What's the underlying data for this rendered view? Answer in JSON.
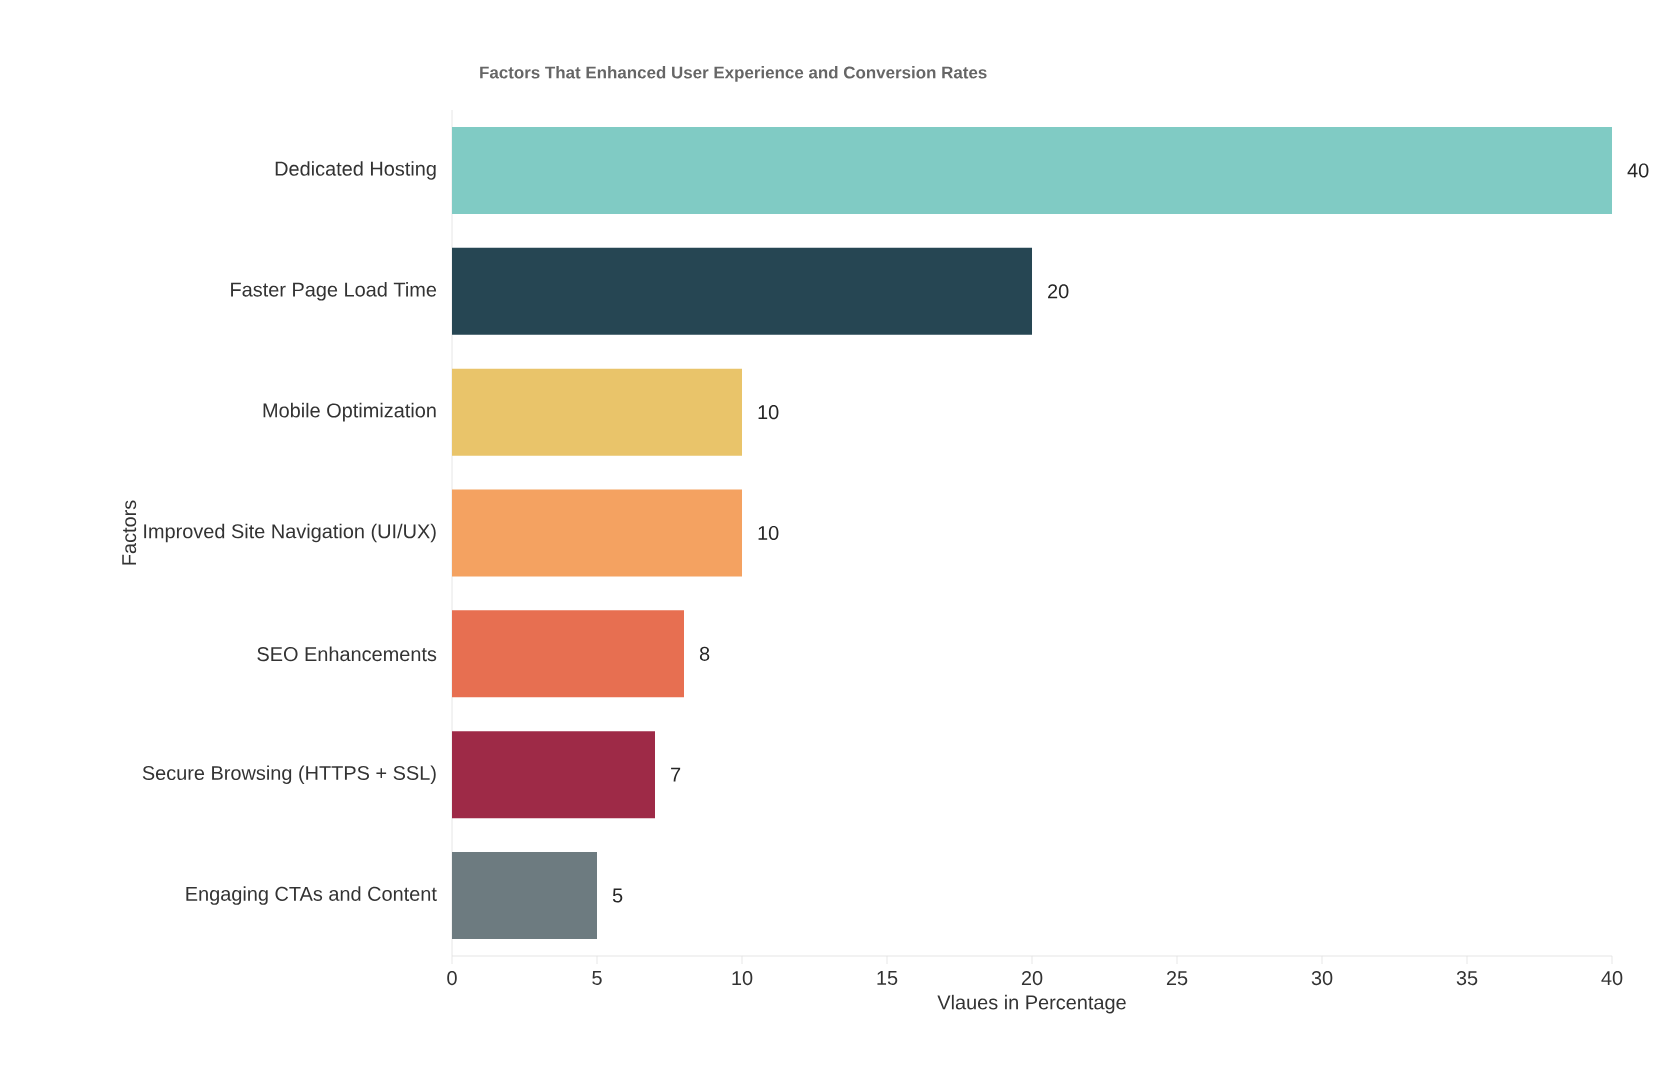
{
  "chart_data": {
    "type": "bar",
    "orientation": "horizontal",
    "title": "Factors That Enhanced User Experience and Conversion Rates",
    "xlabel": "Vlaues in Percentage",
    "ylabel": "Factors",
    "categories": [
      "Dedicated Hosting",
      "Faster Page Load Time",
      "Mobile Optimization",
      "Improved Site Navigation (UI/UX)",
      "SEO Enhancements",
      "Secure Browsing (HTTPS + SSL)",
      "Engaging CTAs and Content"
    ],
    "values": [
      40,
      20,
      10,
      10,
      8,
      7,
      5
    ],
    "colors": [
      "#80cbc4",
      "#264653",
      "#e9c46a",
      "#f4a261",
      "#e76f51",
      "#9e2a47",
      "#6d7b80"
    ],
    "xlim": [
      0,
      40
    ],
    "xticks": [
      0,
      5,
      10,
      15,
      20,
      25,
      30,
      35,
      40
    ],
    "data_labels": true,
    "grid": false
  }
}
